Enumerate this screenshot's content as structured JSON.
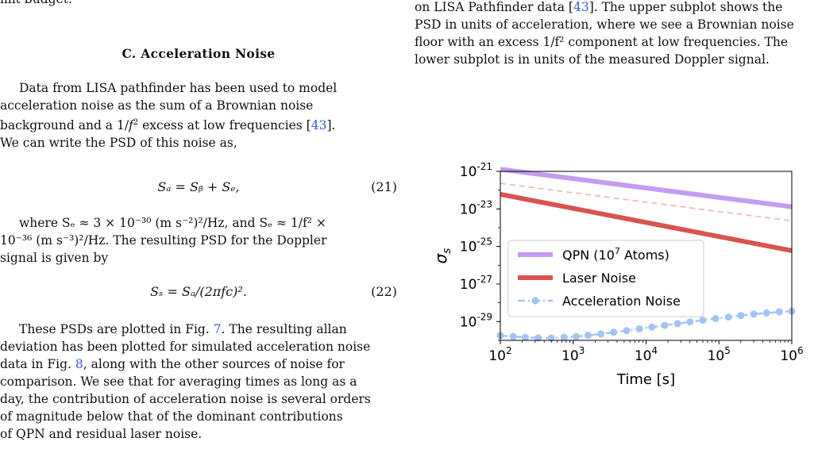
{
  "left": {
    "cut_line": "mit budget.",
    "section_heading": "C.   Acceleration Noise",
    "para1_line1": "Data from LISA pathfinder has been used to model",
    "para1_line2": "acceleration noise as the sum of a Brownian noise",
    "para1_line3a": "background and a 1/",
    "para1_line3b": " excess at low frequencies [",
    "para1_ref": "43",
    "para1_line3c": "].",
    "para1_line4": "We can write the PSD of this noise as,",
    "eq21": "Sₐ = Sᵦ + Sₑ,",
    "eq21_num": "(21)",
    "where_line1": "where Sₑ ≈ 3 × 10⁻³⁰ (m s⁻²)²/Hz, and Sₑ ≈ 1/f² ×",
    "where_line2": "10⁻³⁶ (m s⁻³)²/Hz. The resulting PSD for the Doppler",
    "where_line3": "signal is given by",
    "eq22": "Sₛ = Sₐ/(2πfc)².",
    "eq22_num": "(22)",
    "para2_line1a": "These PSDs are plotted in Fig. ",
    "para2_ref1": "7",
    "para2_line1b": ". The resulting allan",
    "para2_line2": "deviation has been plotted for simulated acceleration noise",
    "para2_line3a": "data in Fig. ",
    "para2_ref2": "8",
    "para2_line3b": ", along with the other sources of noise for",
    "para2_line4": "comparison. We see that for averaging times as long as a",
    "para2_line5": "day, the contribution of acceleration noise is several orders",
    "para2_line6": "of magnitude below that of the dominant contributions",
    "para2_line7": "of QPN and residual laser noise."
  },
  "right": {
    "cap_line1a": "on LISA Pathfinder data [",
    "cap_ref": "43",
    "cap_line1b": "]. The upper subplot shows the",
    "cap_line2": "PSD in units of acceleration, where we see a Brownian noise",
    "cap_line3": "floor with an excess 1/f² component at low frequencies. The",
    "cap_line4": "lower subplot is in units of the measured Doppler signal."
  },
  "chart_data": {
    "type": "line",
    "xlabel": "Time [s]",
    "ylabel": "σs",
    "x_scale": "log",
    "y_scale": "log",
    "xlim": [
      100,
      1000000
    ],
    "ylim": [
      1e-30,
      1e-21
    ],
    "x_ticks": [
      {
        "value": 100,
        "base": "10",
        "exp": "2"
      },
      {
        "value": 1000,
        "base": "10",
        "exp": "3"
      },
      {
        "value": 10000,
        "base": "10",
        "exp": "4"
      },
      {
        "value": 100000,
        "base": "10",
        "exp": "5"
      },
      {
        "value": 1000000,
        "base": "10",
        "exp": "6"
      }
    ],
    "y_ticks": [
      {
        "value": 1e-21,
        "base": "10",
        "exp": "-21"
      },
      {
        "value": 1e-23,
        "base": "10",
        "exp": "-23"
      },
      {
        "value": 1e-25,
        "base": "10",
        "exp": "-25"
      },
      {
        "value": 1e-27,
        "base": "10",
        "exp": "-27"
      },
      {
        "value": 1e-29,
        "base": "10",
        "exp": "-29"
      }
    ],
    "legend_placement": "center-left",
    "series": [
      {
        "name_text": "QPN (10",
        "name_exp": "7",
        "name_tail": " Atoms)",
        "color": "#c39cf2",
        "style": "solid-thick",
        "x": [
          100,
          1000000
        ],
        "y": [
          1.3e-21,
          1.3e-23
        ]
      },
      {
        "name": "Laser Noise",
        "color": "#d9534f",
        "style": "solid-thick",
        "x": [
          100,
          1000000
        ],
        "y": [
          6e-23,
          6e-26
        ]
      },
      {
        "name": "Acceleration Noise",
        "color": "#a4c2f4",
        "style": "dash-dot-markers",
        "x": [
          100,
          150,
          220,
          330,
          500,
          750,
          1100,
          1600,
          2400,
          3600,
          5400,
          8100,
          12000,
          18000,
          27000,
          40000,
          60000,
          90000,
          135000,
          200000,
          300000,
          450000,
          675000,
          1000000
        ],
        "y": [
          1.8e-30,
          1.6e-30,
          1.45e-30,
          1.35e-30,
          1.35e-30,
          1.45e-30,
          1.6e-30,
          1.85e-30,
          2.2e-30,
          2.7e-30,
          3.3e-30,
          4.1e-30,
          5.1e-30,
          6.3e-30,
          7.8e-30,
          9.6e-30,
          1.2e-29,
          1.45e-29,
          1.75e-29,
          2.1e-29,
          2.5e-29,
          2.9e-29,
          3.3e-29,
          3.6e-29
        ]
      },
      {
        "color": "#d9534f",
        "style": "dashed-faint",
        "x": [
          100,
          1000000
        ],
        "y": [
          2.3e-22,
          2.3e-24
        ]
      },
      {
        "color": "#e59866",
        "style": "dashdot-faint",
        "x": [
          100,
          1000000
        ],
        "y": [
          1.2e-21,
          1.2e-23
        ]
      }
    ]
  }
}
